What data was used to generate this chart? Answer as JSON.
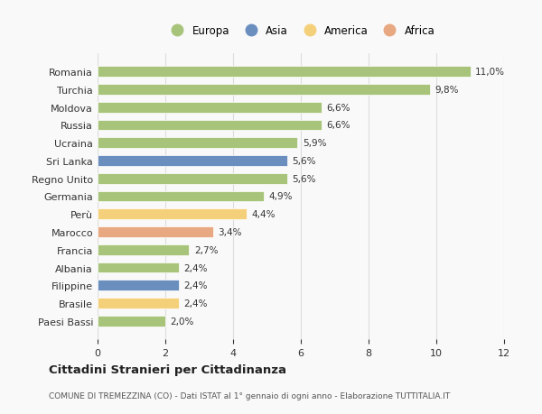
{
  "categories": [
    "Romania",
    "Turchia",
    "Moldova",
    "Russia",
    "Ucraina",
    "Sri Lanka",
    "Regno Unito",
    "Germania",
    "Perù",
    "Marocco",
    "Francia",
    "Albania",
    "Filippine",
    "Brasile",
    "Paesi Bassi"
  ],
  "values": [
    11.0,
    9.8,
    6.6,
    6.6,
    5.9,
    5.6,
    5.6,
    4.9,
    4.4,
    3.4,
    2.7,
    2.4,
    2.4,
    2.4,
    2.0
  ],
  "continents": [
    "Europa",
    "Europa",
    "Europa",
    "Europa",
    "Europa",
    "Asia",
    "Europa",
    "Europa",
    "America",
    "Africa",
    "Europa",
    "Europa",
    "Asia",
    "America",
    "Europa"
  ],
  "continent_colors": {
    "Europa": "#a8c47a",
    "Asia": "#6a8fbe",
    "America": "#f5d07a",
    "Africa": "#e8a882"
  },
  "legend_order": [
    "Europa",
    "Asia",
    "America",
    "Africa"
  ],
  "labels": [
    "11,0%",
    "9,8%",
    "6,6%",
    "6,6%",
    "5,9%",
    "5,6%",
    "5,6%",
    "4,9%",
    "4,4%",
    "3,4%",
    "2,7%",
    "2,4%",
    "2,4%",
    "2,4%",
    "2,0%"
  ],
  "title": "Cittadini Stranieri per Cittadinanza",
  "subtitle": "COMUNE DI TREMEZZINA (CO) - Dati ISTAT al 1° gennaio di ogni anno - Elaborazione TUTTITALIA.IT",
  "xlim": [
    0,
    12
  ],
  "xticks": [
    0,
    2,
    4,
    6,
    8,
    10,
    12
  ],
  "background_color": "#f9f9f9",
  "bar_height": 0.6,
  "grid_color": "#dddddd"
}
